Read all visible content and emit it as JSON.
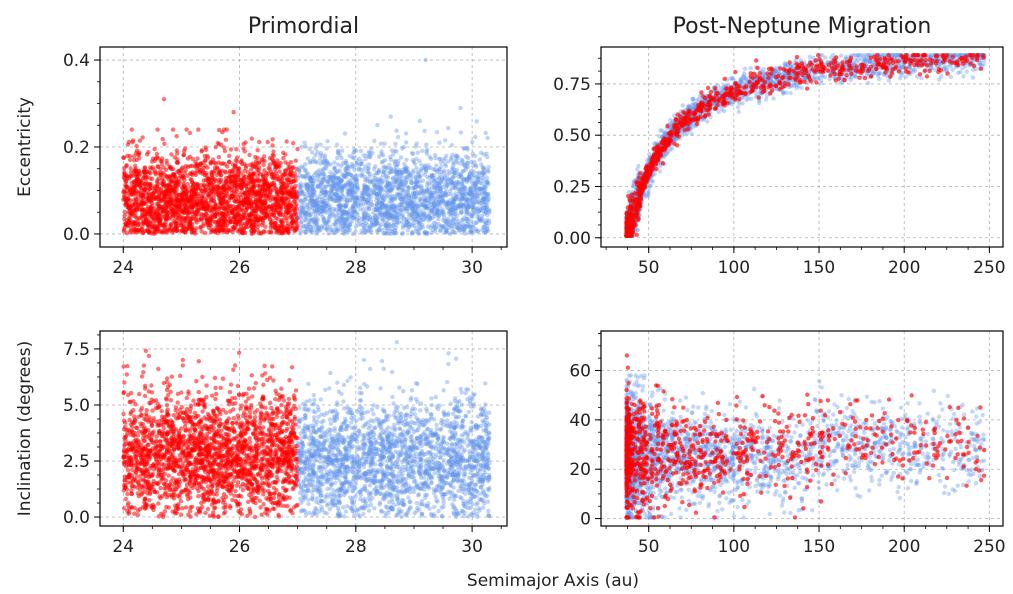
{
  "figure": {
    "xlabel": "Semimajor Axis (au)",
    "colors": {
      "red_series": "#ff0000",
      "blue_series": "#6495ed"
    }
  },
  "chart_data": [
    {
      "type": "scatter",
      "title": "Primordial",
      "xlabel": "",
      "ylabel": "Eccentricity",
      "xlim": [
        23.6,
        30.6
      ],
      "ylim": [
        -0.03,
        0.43
      ],
      "xticks": [
        24,
        26,
        28,
        30
      ],
      "yticks": [
        0.0,
        0.2,
        0.4
      ],
      "ytick_labels": [
        "0.0",
        "0.2",
        "0.4"
      ],
      "grid": true,
      "series": [
        {
          "color": "#ff0000",
          "x_range": [
            24.0,
            27.0
          ],
          "y_range": [
            0.0,
            0.24
          ],
          "y_typical": 0.08,
          "outliers": [
            [
              24.7,
              0.31
            ],
            [
              25.9,
              0.28
            ]
          ]
        },
        {
          "color": "#6495ed",
          "x_range": [
            27.0,
            30.3
          ],
          "y_range": [
            0.0,
            0.26
          ],
          "y_typical": 0.08,
          "outliers": [
            [
              29.2,
              0.4
            ],
            [
              29.8,
              0.29
            ],
            [
              28.6,
              0.27
            ]
          ]
        }
      ]
    },
    {
      "type": "scatter",
      "title": "Post-Neptune Migration",
      "xlabel": "",
      "ylabel": "",
      "xlim": [
        22,
        258
      ],
      "ylim": [
        -0.045,
        0.93
      ],
      "xticks": [
        50,
        100,
        150,
        200,
        250
      ],
      "yticks": [
        0.0,
        0.25,
        0.5,
        0.75
      ],
      "ytick_labels": [
        "0.00",
        "0.25",
        "0.50",
        "0.75"
      ],
      "grid": true,
      "series": [
        {
          "color": "#6495ed",
          "x_range": [
            36,
            250
          ],
          "y_relation": "e rises from ~0.05 at a=39 to ~0.86 at a=245",
          "points_shown_approx": 2500
        },
        {
          "color": "#ff0000",
          "x_range": [
            36,
            245
          ],
          "y_relation": "e rises from ~0.05 at a=39 to ~0.86 at a=245",
          "points_shown_approx": 900
        }
      ]
    },
    {
      "type": "scatter",
      "title": "",
      "xlabel": "",
      "ylabel": "Inclination (degrees)",
      "xlim": [
        23.6,
        30.6
      ],
      "ylim": [
        -0.4,
        8.3
      ],
      "xticks": [
        24,
        26,
        28,
        30
      ],
      "yticks": [
        0.0,
        2.5,
        5.0,
        7.5
      ],
      "ytick_labels": [
        "0.0",
        "2.5",
        "5.0",
        "7.5"
      ],
      "grid": true,
      "series": [
        {
          "color": "#ff0000",
          "x_range": [
            24.0,
            27.0
          ],
          "y_range": [
            0.0,
            7.8
          ],
          "y_typical": 2.8
        },
        {
          "color": "#6495ed",
          "x_range": [
            27.0,
            30.3
          ],
          "y_range": [
            0.0,
            7.8
          ],
          "y_typical": 2.5
        }
      ]
    },
    {
      "type": "scatter",
      "title": "",
      "xlabel": "",
      "ylabel": "",
      "xlim": [
        22,
        258
      ],
      "ylim": [
        -3,
        76
      ],
      "xticks": [
        50,
        100,
        150,
        200,
        250
      ],
      "yticks": [
        0,
        20,
        40,
        60
      ],
      "ytick_labels": [
        "0",
        "20",
        "40",
        "60"
      ],
      "grid": true,
      "series": [
        {
          "color": "#6495ed",
          "x_range": [
            36,
            250
          ],
          "y_range": [
            0,
            58
          ],
          "y_typical": 25
        },
        {
          "color": "#ff0000",
          "x_range": [
            36,
            245
          ],
          "y_range": [
            0,
            72
          ],
          "y_typical": 27
        }
      ]
    }
  ]
}
